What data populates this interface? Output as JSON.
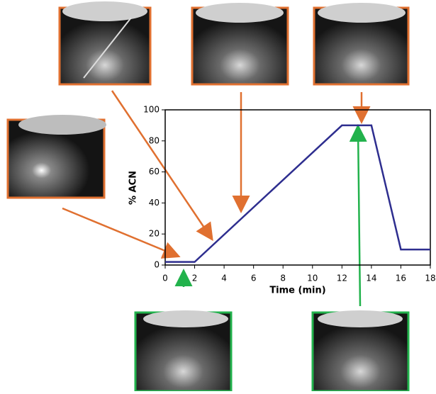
{
  "chart_data": {
    "type": "line",
    "x": [
      0,
      2,
      12,
      14,
      16,
      18
    ],
    "series": [
      {
        "color": "#2e2e8f",
        "values": [
          2,
          2,
          90,
          90,
          10,
          10
        ]
      }
    ],
    "xlim": [
      0,
      18
    ],
    "ylim": [
      0,
      100
    ],
    "xticks": [
      0,
      2,
      4,
      6,
      8,
      10,
      12,
      14,
      16,
      18
    ],
    "yticks": [
      0,
      20,
      40,
      60,
      80,
      100
    ],
    "xlabel": "Time (min)",
    "ylabel": "% ACN"
  }
}
